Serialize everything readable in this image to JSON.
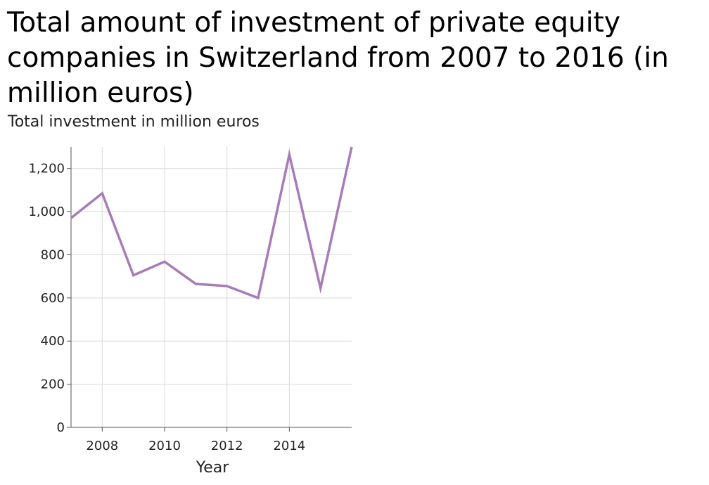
{
  "chart_data": {
    "type": "line",
    "title": "Total amount of investment of private equity companies in Switzerland from 2007 to 2016 (in million euros)",
    "ylabel": "Total investment in million euros",
    "xlabel": "Year",
    "x": [
      2007,
      2008,
      2009,
      2010,
      2011,
      2012,
      2013,
      2014,
      2015,
      2016
    ],
    "series": [
      {
        "values": [
          970,
          1085,
          705,
          768,
          665,
          655,
          600,
          1265,
          645,
          1300
        ]
      }
    ],
    "xlim": [
      2007,
      2016
    ],
    "ylim": [
      0,
      1300
    ],
    "xticks": [
      2008,
      2010,
      2012,
      2014
    ],
    "xtick_labels": [
      "2008",
      "2010",
      "2012",
      "2014"
    ],
    "yticks": [
      0,
      200,
      400,
      600,
      800,
      1000,
      1200
    ],
    "ytick_labels": [
      "0",
      "200",
      "400",
      "600",
      "800",
      "1,000",
      "1,200"
    ],
    "grid": true,
    "line_color": "#a77cb7",
    "grid_color": "#d9d9d9",
    "axis_color": "#555555"
  }
}
